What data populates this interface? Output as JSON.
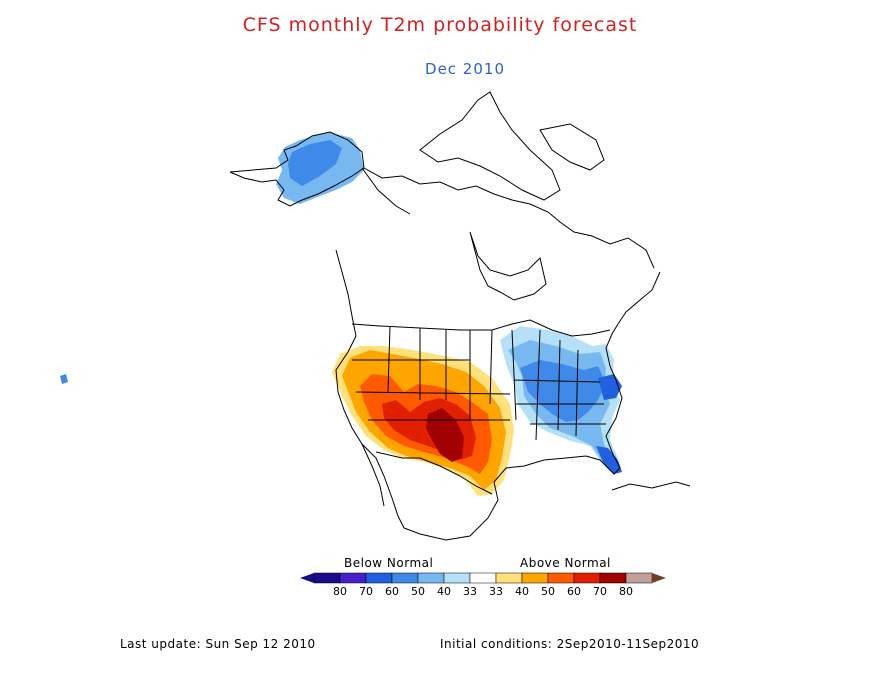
{
  "title": "CFS monthly T2m probability forecast",
  "subtitle": "Dec 2010",
  "colors": {
    "title": "#d42020",
    "subtitle": "#2f5fd0",
    "map_line": "#000000",
    "below_80": "#1a0a8c",
    "below_70": "#4420c8",
    "below_60": "#1f5fe0",
    "below_50": "#3f8ae8",
    "below_40": "#78b8f0",
    "below_33": "#b4e0f8",
    "normal": "#ffffff",
    "above_33": "#ffe07a",
    "above_40": "#ffa500",
    "above_50": "#ff5a00",
    "above_60": "#e02000",
    "above_70": "#a00000",
    "above_80": "#c0a098",
    "above_max": "#70402a"
  },
  "legend": {
    "below_label": "Below Normal",
    "above_label": "Above Normal",
    "ticks": [
      "80",
      "70",
      "60",
      "50",
      "40",
      "33",
      "33",
      "40",
      "50",
      "60",
      "70",
      "80"
    ]
  },
  "footer": {
    "last_update": "Last update: Sun Sep 12 2010",
    "initial_conditions": "Initial conditions: 2Sep2010-11Sep2010"
  }
}
